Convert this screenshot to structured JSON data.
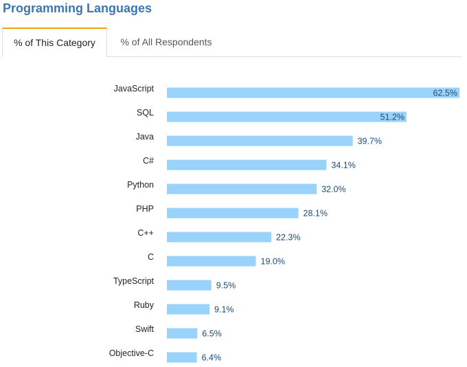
{
  "header": {
    "title": "Programming Languages"
  },
  "tabs": [
    {
      "label": "% of This Category",
      "active": true
    },
    {
      "label": "% of All Respondents",
      "active": false
    }
  ],
  "colors": {
    "title": "#3a77b0",
    "tab_accent": "#f0a30a",
    "bar": "#99d3fb",
    "value_text": "#1b4a7a"
  },
  "chart_data": {
    "type": "bar",
    "orientation": "horizontal",
    "title": "",
    "xlabel": "",
    "ylabel": "",
    "xlim": [
      0,
      62.5
    ],
    "grid": false,
    "categories": [
      "JavaScript",
      "SQL",
      "Java",
      "C#",
      "Python",
      "PHP",
      "C++",
      "C",
      "TypeScript",
      "Ruby",
      "Swift",
      "Objective-C"
    ],
    "values": [
      62.5,
      51.2,
      39.7,
      34.1,
      32.0,
      28.1,
      22.3,
      19.0,
      9.5,
      9.1,
      6.5,
      6.4
    ],
    "value_labels": [
      "62.5%",
      "51.2%",
      "39.7%",
      "34.1%",
      "32.0%",
      "28.1%",
      "22.3%",
      "19.0%",
      "9.5%",
      "9.1%",
      "6.5%",
      "6.4%"
    ]
  }
}
